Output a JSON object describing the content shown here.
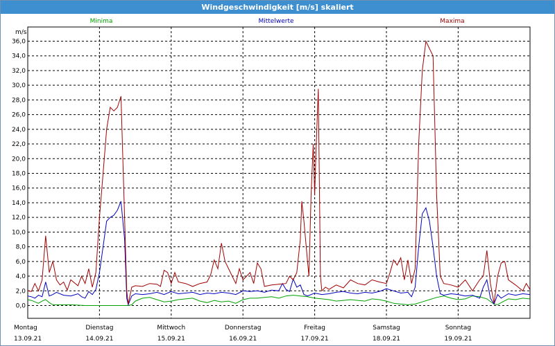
{
  "title": "Windgeschwindigkeit [m/s] skaliert",
  "colors": {
    "minima": "#00a000",
    "mittelwerte": "#0000c0",
    "maxima": "#a00000",
    "titlebar": "#3d8fd0"
  },
  "chart_data": {
    "type": "line",
    "title": "Windgeschwindigkeit [m/s] skaliert",
    "ylabel": "m/s",
    "ylim": [
      0,
      37
    ],
    "yticks": [
      "0,0",
      "2,0",
      "4,0",
      "6,0",
      "8,0",
      "10,0",
      "12,0",
      "14,0",
      "16,0",
      "18,0",
      "20,0",
      "22,0",
      "24,0",
      "26,0",
      "28,0",
      "30,0",
      "32,0",
      "34,0",
      "36,0"
    ],
    "xlim": [
      0,
      7
    ],
    "days": [
      {
        "day": "Montag",
        "date": "13.09.21"
      },
      {
        "day": "Dienstag",
        "date": "14.09.21"
      },
      {
        "day": "Mittwoch",
        "date": "15.09.21"
      },
      {
        "day": "Donnerstag",
        "date": "16.09.21"
      },
      {
        "day": "Freitag",
        "date": "17.09.21"
      },
      {
        "day": "Samstag",
        "date": "18.09.21"
      },
      {
        "day": "Sonntag",
        "date": "19.09.21"
      }
    ],
    "grid": true,
    "legend_position": "top",
    "series": [
      {
        "name": "Minima",
        "color": "#00a000",
        "points": [
          [
            0,
            0.8
          ],
          [
            0.05,
            0.7
          ],
          [
            0.1,
            0.5
          ],
          [
            0.15,
            0.3
          ],
          [
            0.2,
            0.6
          ],
          [
            0.25,
            0.8
          ],
          [
            0.3,
            0.4
          ],
          [
            0.35,
            0.1
          ],
          [
            0.45,
            0.1
          ],
          [
            0.6,
            0.1
          ],
          [
            0.8,
            0.0
          ],
          [
            1,
            0.0
          ],
          [
            1.2,
            0.0
          ],
          [
            1.4,
            0.0
          ],
          [
            1.45,
            0.1
          ],
          [
            1.5,
            0.6
          ],
          [
            1.6,
            1.0
          ],
          [
            1.7,
            1.1
          ],
          [
            1.8,
            0.8
          ],
          [
            1.9,
            0.5
          ],
          [
            2.0,
            0.6
          ],
          [
            2.1,
            0.8
          ],
          [
            2.2,
            0.9
          ],
          [
            2.3,
            1.0
          ],
          [
            2.4,
            0.6
          ],
          [
            2.5,
            0.4
          ],
          [
            2.6,
            0.7
          ],
          [
            2.7,
            0.5
          ],
          [
            2.8,
            0.6
          ],
          [
            2.9,
            0.3
          ],
          [
            3.0,
            0.8
          ],
          [
            3.1,
            1.0
          ],
          [
            3.2,
            1.0
          ],
          [
            3.3,
            1.1
          ],
          [
            3.4,
            1.2
          ],
          [
            3.5,
            1.0
          ],
          [
            3.6,
            1.3
          ],
          [
            3.7,
            1.4
          ],
          [
            3.8,
            1.3
          ],
          [
            3.9,
            1.2
          ],
          [
            4.0,
            1.0
          ],
          [
            4.1,
            0.9
          ],
          [
            4.2,
            0.8
          ],
          [
            4.3,
            0.6
          ],
          [
            4.4,
            0.7
          ],
          [
            4.5,
            0.8
          ],
          [
            4.6,
            0.7
          ],
          [
            4.7,
            0.6
          ],
          [
            4.8,
            0.9
          ],
          [
            4.9,
            0.8
          ],
          [
            5.0,
            0.6
          ],
          [
            5.1,
            0.3
          ],
          [
            5.2,
            0.2
          ],
          [
            5.3,
            0.1
          ],
          [
            5.4,
            0.2
          ],
          [
            5.5,
            0.5
          ],
          [
            5.6,
            0.8
          ],
          [
            5.7,
            1.1
          ],
          [
            5.8,
            1.3
          ],
          [
            5.9,
            1.0
          ],
          [
            6.0,
            0.8
          ],
          [
            6.1,
            0.9
          ],
          [
            6.2,
            1.3
          ],
          [
            6.3,
            1.2
          ],
          [
            6.4,
            0.9
          ],
          [
            6.5,
            0.2
          ],
          [
            6.55,
            0.1
          ],
          [
            6.6,
            0.4
          ],
          [
            6.7,
            0.9
          ],
          [
            6.8,
            0.8
          ],
          [
            6.9,
            1.0
          ],
          [
            7.0,
            0.9
          ]
        ]
      },
      {
        "name": "Mittelwerte",
        "color": "#0000c0",
        "points": [
          [
            0,
            1.3
          ],
          [
            0.05,
            1.2
          ],
          [
            0.1,
            1.0
          ],
          [
            0.15,
            1.4
          ],
          [
            0.2,
            1.2
          ],
          [
            0.25,
            3.2
          ],
          [
            0.3,
            1.3
          ],
          [
            0.35,
            1.5
          ],
          [
            0.4,
            1.8
          ],
          [
            0.5,
            1.4
          ],
          [
            0.6,
            1.3
          ],
          [
            0.7,
            1.6
          ],
          [
            0.75,
            1.2
          ],
          [
            0.8,
            1.0
          ],
          [
            0.85,
            1.9
          ],
          [
            0.9,
            1.5
          ],
          [
            0.95,
            2.2
          ],
          [
            1.0,
            4.5
          ],
          [
            1.05,
            8.0
          ],
          [
            1.1,
            11.5
          ],
          [
            1.15,
            12.0
          ],
          [
            1.2,
            12.3
          ],
          [
            1.25,
            13.0
          ],
          [
            1.3,
            14.2
          ],
          [
            1.35,
            9.0
          ],
          [
            1.38,
            1.0
          ],
          [
            1.4,
            0.1
          ],
          [
            1.45,
            1.3
          ],
          [
            1.5,
            1.6
          ],
          [
            1.6,
            1.5
          ],
          [
            1.7,
            1.6
          ],
          [
            1.8,
            1.8
          ],
          [
            1.9,
            1.5
          ],
          [
            2.0,
            1.9
          ],
          [
            2.1,
            1.6
          ],
          [
            2.2,
            1.7
          ],
          [
            2.3,
            1.8
          ],
          [
            2.4,
            1.5
          ],
          [
            2.5,
            1.7
          ],
          [
            2.6,
            1.6
          ],
          [
            2.7,
            1.8
          ],
          [
            2.8,
            1.7
          ],
          [
            2.9,
            1.5
          ],
          [
            3.0,
            2.0
          ],
          [
            3.1,
            1.9
          ],
          [
            3.2,
            2.0
          ],
          [
            3.3,
            1.8
          ],
          [
            3.4,
            2.1
          ],
          [
            3.5,
            2.0
          ],
          [
            3.55,
            3.0
          ],
          [
            3.6,
            2.2
          ],
          [
            3.65,
            1.9
          ],
          [
            3.7,
            3.6
          ],
          [
            3.75,
            2.5
          ],
          [
            3.8,
            2.8
          ],
          [
            3.85,
            1.5
          ],
          [
            3.9,
            1.3
          ],
          [
            4.0,
            1.7
          ],
          [
            4.1,
            1.5
          ],
          [
            4.2,
            1.6
          ],
          [
            4.3,
            1.8
          ],
          [
            4.4,
            1.9
          ],
          [
            4.5,
            1.7
          ],
          [
            4.6,
            1.6
          ],
          [
            4.7,
            1.8
          ],
          [
            4.8,
            1.7
          ],
          [
            4.9,
            1.9
          ],
          [
            5.0,
            2.3
          ],
          [
            5.1,
            2.0
          ],
          [
            5.2,
            1.7
          ],
          [
            5.3,
            1.8
          ],
          [
            5.35,
            1.2
          ],
          [
            5.4,
            2.5
          ],
          [
            5.45,
            8.0
          ],
          [
            5.5,
            12.5
          ],
          [
            5.55,
            13.3
          ],
          [
            5.6,
            11.5
          ],
          [
            5.65,
            8.0
          ],
          [
            5.7,
            4.0
          ],
          [
            5.75,
            1.6
          ],
          [
            5.8,
            1.4
          ],
          [
            5.9,
            1.6
          ],
          [
            6.0,
            1.5
          ],
          [
            6.1,
            1.3
          ],
          [
            6.2,
            1.4
          ],
          [
            6.3,
            1.0
          ],
          [
            6.35,
            2.5
          ],
          [
            6.4,
            3.5
          ],
          [
            6.45,
            1.0
          ],
          [
            6.5,
            0.2
          ],
          [
            6.55,
            1.5
          ],
          [
            6.6,
            1.0
          ],
          [
            6.7,
            1.6
          ],
          [
            6.8,
            1.4
          ],
          [
            6.9,
            1.6
          ],
          [
            7.0,
            1.5
          ]
        ]
      },
      {
        "name": "Maxima",
        "color": "#a00000",
        "points": [
          [
            0,
            2.0
          ],
          [
            0.05,
            1.9
          ],
          [
            0.1,
            3.0
          ],
          [
            0.15,
            2.0
          ],
          [
            0.2,
            3.5
          ],
          [
            0.25,
            9.5
          ],
          [
            0.3,
            4.5
          ],
          [
            0.35,
            6.0
          ],
          [
            0.4,
            3.5
          ],
          [
            0.45,
            2.8
          ],
          [
            0.5,
            3.2
          ],
          [
            0.55,
            2.1
          ],
          [
            0.6,
            3.5
          ],
          [
            0.7,
            2.7
          ],
          [
            0.75,
            4.0
          ],
          [
            0.8,
            3.0
          ],
          [
            0.85,
            5.0
          ],
          [
            0.9,
            2.5
          ],
          [
            0.95,
            4.5
          ],
          [
            1.0,
            12.0
          ],
          [
            1.05,
            18.0
          ],
          [
            1.1,
            24.0
          ],
          [
            1.15,
            27.0
          ],
          [
            1.2,
            26.5
          ],
          [
            1.25,
            27.0
          ],
          [
            1.3,
            28.5
          ],
          [
            1.35,
            12.0
          ],
          [
            1.38,
            2.0
          ],
          [
            1.4,
            0.2
          ],
          [
            1.45,
            2.5
          ],
          [
            1.5,
            2.7
          ],
          [
            1.6,
            2.6
          ],
          [
            1.7,
            3.0
          ],
          [
            1.8,
            2.9
          ],
          [
            1.85,
            2.6
          ],
          [
            1.9,
            4.8
          ],
          [
            1.95,
            4.5
          ],
          [
            2.0,
            3.0
          ],
          [
            2.05,
            4.5
          ],
          [
            2.1,
            3.2
          ],
          [
            2.2,
            3.0
          ],
          [
            2.3,
            2.6
          ],
          [
            2.4,
            3.0
          ],
          [
            2.5,
            3.2
          ],
          [
            2.55,
            4.2
          ],
          [
            2.6,
            6.2
          ],
          [
            2.65,
            5.0
          ],
          [
            2.7,
            8.5
          ],
          [
            2.75,
            6.0
          ],
          [
            2.8,
            5.0
          ],
          [
            2.85,
            4.0
          ],
          [
            2.9,
            3.0
          ],
          [
            2.95,
            5.0
          ],
          [
            3.0,
            3.5
          ],
          [
            3.05,
            4.0
          ],
          [
            3.1,
            4.5
          ],
          [
            3.15,
            3.0
          ],
          [
            3.2,
            5.8
          ],
          [
            3.25,
            5.0
          ],
          [
            3.3,
            2.6
          ],
          [
            3.4,
            2.8
          ],
          [
            3.5,
            2.9
          ],
          [
            3.6,
            3.0
          ],
          [
            3.65,
            4.0
          ],
          [
            3.7,
            3.5
          ],
          [
            3.75,
            4.5
          ],
          [
            3.8,
            9.0
          ],
          [
            3.82,
            14.2
          ],
          [
            3.85,
            11.5
          ],
          [
            3.9,
            6.0
          ],
          [
            3.92,
            4.0
          ],
          [
            3.95,
            15.0
          ],
          [
            3.98,
            22.0
          ],
          [
            4.0,
            15.0
          ],
          [
            4.02,
            21.5
          ],
          [
            4.05,
            29.5
          ],
          [
            4.08,
            4.0
          ],
          [
            4.1,
            2.0
          ],
          [
            4.15,
            2.5
          ],
          [
            4.2,
            2.2
          ],
          [
            4.3,
            2.8
          ],
          [
            4.4,
            2.4
          ],
          [
            4.5,
            3.5
          ],
          [
            4.6,
            3.0
          ],
          [
            4.7,
            2.8
          ],
          [
            4.8,
            3.5
          ],
          [
            4.9,
            3.2
          ],
          [
            5.0,
            3.0
          ],
          [
            5.05,
            4.5
          ],
          [
            5.1,
            6.2
          ],
          [
            5.15,
            5.5
          ],
          [
            5.2,
            6.5
          ],
          [
            5.25,
            3.5
          ],
          [
            5.3,
            6.2
          ],
          [
            5.35,
            3.0
          ],
          [
            5.4,
            5.0
          ],
          [
            5.45,
            22.0
          ],
          [
            5.5,
            32.0
          ],
          [
            5.55,
            36.0
          ],
          [
            5.6,
            35.0
          ],
          [
            5.65,
            34.0
          ],
          [
            5.7,
            15.0
          ],
          [
            5.75,
            4.0
          ],
          [
            5.8,
            3.0
          ],
          [
            5.9,
            2.8
          ],
          [
            6.0,
            2.5
          ],
          [
            6.1,
            3.5
          ],
          [
            6.2,
            2.0
          ],
          [
            6.3,
            3.5
          ],
          [
            6.35,
            4.0
          ],
          [
            6.4,
            7.5
          ],
          [
            6.45,
            3.0
          ],
          [
            6.5,
            0.3
          ],
          [
            6.55,
            4.0
          ],
          [
            6.6,
            5.8
          ],
          [
            6.65,
            6.0
          ],
          [
            6.7,
            3.5
          ],
          [
            6.8,
            2.8
          ],
          [
            6.9,
            2.0
          ],
          [
            6.95,
            3.0
          ],
          [
            7.0,
            2.2
          ]
        ]
      }
    ]
  }
}
